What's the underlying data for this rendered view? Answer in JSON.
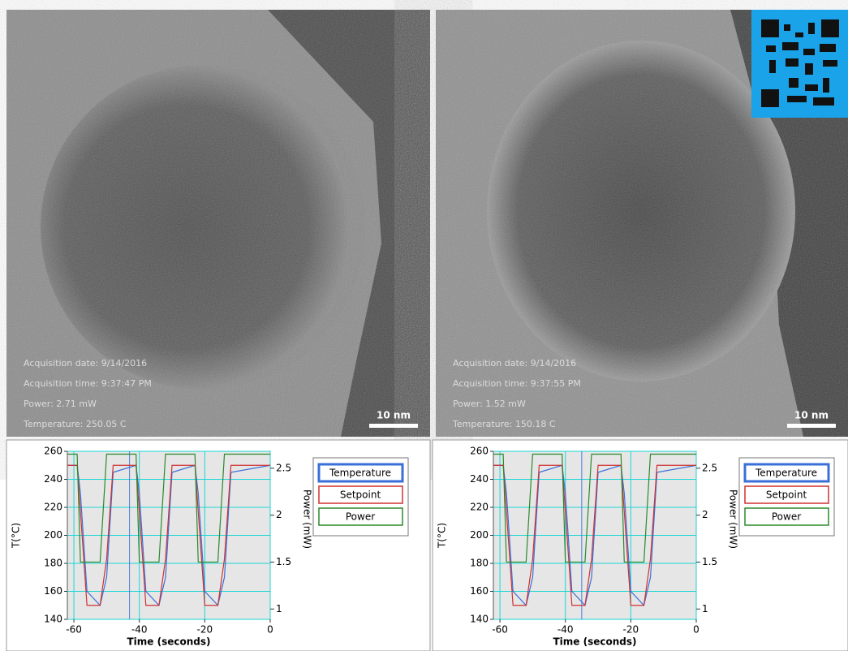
{
  "images": [
    {
      "lines": [
        "Acquisition date: 9/14/2016",
        "Acquisition time: 9:37:47 PM",
        "Power: 2.71 mW",
        "Temperature: 250.05 C"
      ],
      "scale_bar": "10 nm"
    },
    {
      "lines": [
        "Acquisition date: 9/14/2016",
        "Acquisition time: 9:37:55 PM",
        "Power: 1.52 mW",
        "Temperature: 150.18 C"
      ],
      "scale_bar": "10 nm"
    }
  ],
  "chart_data": [
    {
      "type": "line",
      "x_label": "Time (seconds)",
      "y_label": "T(°C)",
      "y2_label": "Power (mW)",
      "x": [
        -62,
        -59,
        -58,
        -56,
        -52,
        -50,
        -48,
        -41,
        -40,
        -38,
        -34,
        -32,
        -30,
        -23,
        -22,
        -20,
        -16,
        -14,
        -12,
        0
      ],
      "series": [
        {
          "name": "Temperature",
          "color": "#3a6fd8",
          "values": [
            250,
            250,
            230,
            160,
            150,
            170,
            245,
            250,
            230,
            160,
            150,
            170,
            245,
            250,
            230,
            160,
            150,
            170,
            245,
            250
          ]
        },
        {
          "name": "Setpoint",
          "color": "#d03030",
          "values": [
            250,
            250,
            217,
            150,
            150,
            183,
            250,
            250,
            217,
            150,
            150,
            183,
            250,
            250,
            217,
            150,
            150,
            183,
            250,
            250
          ]
        },
        {
          "name": "Power",
          "color": "#2a8a2a",
          "axis": "y2",
          "values": [
            2.65,
            2.65,
            1.5,
            1.5,
            1.5,
            2.65,
            2.65,
            2.65,
            1.5,
            1.5,
            1.5,
            2.65,
            2.65,
            2.65,
            1.5,
            1.5,
            1.5,
            2.65,
            2.65,
            2.65
          ]
        }
      ],
      "xlim": [
        -62,
        0
      ],
      "xticks": [
        -60,
        -40,
        -20,
        0
      ],
      "ylim": [
        140,
        260
      ],
      "yticks": [
        140,
        160,
        180,
        200,
        220,
        240,
        260
      ],
      "y2lim": [
        0.89,
        2.68
      ],
      "y2ticks": [
        1,
        1.5,
        2,
        2.5
      ],
      "cursor": -43,
      "grid": true
    },
    {
      "type": "line",
      "x_label": "Time (seconds)",
      "y_label": "T(°C)",
      "y2_label": "Power (mW)",
      "x": [
        -62,
        -59,
        -58,
        -56,
        -52,
        -50,
        -48,
        -41,
        -40,
        -38,
        -34,
        -32,
        -30,
        -23,
        -22,
        -20,
        -16,
        -14,
        -12,
        0
      ],
      "series": [
        {
          "name": "Temperature",
          "color": "#3a6fd8",
          "values": [
            250,
            250,
            230,
            160,
            150,
            170,
            245,
            250,
            230,
            160,
            150,
            170,
            245,
            250,
            230,
            160,
            150,
            170,
            245,
            250
          ]
        },
        {
          "name": "Setpoint",
          "color": "#d03030",
          "values": [
            250,
            250,
            217,
            150,
            150,
            183,
            250,
            250,
            217,
            150,
            150,
            183,
            250,
            250,
            217,
            150,
            150,
            183,
            250,
            250
          ]
        },
        {
          "name": "Power",
          "color": "#2a8a2a",
          "axis": "y2",
          "values": [
            2.65,
            2.65,
            1.5,
            1.5,
            1.5,
            2.65,
            2.65,
            2.65,
            1.5,
            1.5,
            1.5,
            2.65,
            2.65,
            2.65,
            1.5,
            1.5,
            1.5,
            2.65,
            2.65,
            2.65
          ]
        }
      ],
      "xlim": [
        -62,
        0
      ],
      "xticks": [
        -60,
        -40,
        -20,
        0
      ],
      "ylim": [
        140,
        260
      ],
      "yticks": [
        140,
        160,
        180,
        200,
        220,
        240,
        260
      ],
      "y2lim": [
        0.89,
        2.68
      ],
      "y2ticks": [
        1,
        1.5,
        2,
        2.5
      ],
      "cursor": -35,
      "grid": true
    }
  ]
}
